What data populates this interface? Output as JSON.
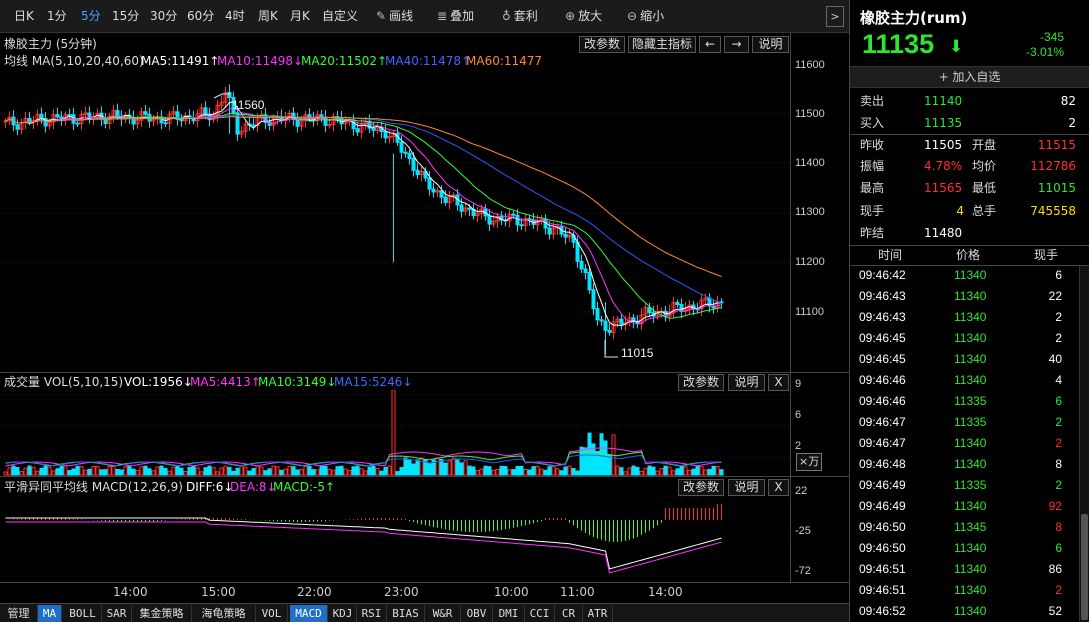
{
  "toolbar": {
    "items": [
      "日K",
      "1分",
      "5分",
      "15分",
      "30分",
      "60分",
      "4时",
      "周K",
      "月K",
      "自定义",
      "画线",
      "叠加",
      "套利",
      "放大",
      "缩小"
    ],
    "active_index": 2,
    "more": ">"
  },
  "main_panel": {
    "title": "橡胶主力 (5分钟)",
    "buttons": [
      "改参数",
      "隐藏主指标",
      "←",
      "→",
      "说明"
    ],
    "ma_label": "均线 MA(5,10,20,40,60)",
    "ma5": "MA5:11491↑",
    "ma10": "MA10:11498↓",
    "ma20": "MA20:11502↑",
    "ma40": "MA40:11478↑",
    "ma60": "MA60:11477",
    "high_label": "11560",
    "low_label": "11015",
    "yticks": [
      "11600",
      "11500",
      "11400",
      "11300",
      "11200",
      "11100"
    ]
  },
  "vol_panel": {
    "title": "成交量 VOL(5,10,15)",
    "vol": "VOL:1956↓",
    "ma5": "MA5:4413↑",
    "ma10": "MA10:3149↓",
    "ma15": "MA15:5246↓",
    "buttons": [
      "改参数",
      "说明",
      "X"
    ],
    "yticks": [
      "9",
      "6",
      "2"
    ],
    "unit": "×万"
  },
  "macd_panel": {
    "title": "平滑异同平均线 MACD(12,26,9)",
    "diff": "DIFF:6↓",
    "dea": "DEA:8↓",
    "macd": "MACD:-5↑",
    "buttons": [
      "改参数",
      "说明",
      "X"
    ],
    "yticks": [
      "22",
      "-25",
      "-72"
    ]
  },
  "time_axis": [
    "14:00",
    "15:00",
    "22:00",
    "23:00",
    "10:00",
    "11:00",
    "14:00"
  ],
  "bottom_tabs": [
    "管理",
    "MA",
    "BOLL",
    "SAR",
    "集金策略",
    "海龟策略",
    "VOL",
    "MACD",
    "KDJ",
    "RSI",
    "BIAS",
    "W&R",
    "OBV",
    "DMI",
    "CCI",
    "CR",
    "ATR"
  ],
  "bottom_active": [
    "MA",
    "MACD"
  ],
  "quote": {
    "name": "橡胶主力(rum)",
    "price": "11135",
    "arrow": "⬇",
    "change": "-345",
    "change_pct": "-3.01%",
    "add_watch": "+ 加入自选",
    "sell_label": "卖出",
    "sell_price": "11140",
    "sell_vol": "82",
    "buy_label": "买入",
    "buy_price": "11135",
    "buy_vol": "2",
    "prev_close_label": "昨收",
    "prev_close": "11505",
    "open_label": "开盘",
    "open": "11515",
    "amplitude_label": "振幅",
    "amplitude": "4.78%",
    "avg_label": "均价",
    "avg": "112786",
    "high_label": "最高",
    "high": "11565",
    "low_label": "最低",
    "low": "11015",
    "cur_hand_label": "现手",
    "cur_hand": "4",
    "total_hand_label": "总手",
    "total_hand": "745558",
    "prev_settle_label": "昨结",
    "prev_settle": "11480"
  },
  "ticks_header": [
    "时间",
    "价格",
    "现手"
  ],
  "ticks": [
    {
      "time": "09:46:42",
      "price": "11340",
      "vol": "6",
      "c": "wht"
    },
    {
      "time": "09:46:43",
      "price": "11340",
      "vol": "22",
      "c": "wht"
    },
    {
      "time": "09:46:43",
      "price": "11340",
      "vol": "2",
      "c": "wht"
    },
    {
      "time": "09:46:45",
      "price": "11340",
      "vol": "2",
      "c": "wht"
    },
    {
      "time": "09:46:45",
      "price": "11340",
      "vol": "40",
      "c": "wht"
    },
    {
      "time": "09:46:46",
      "price": "11340",
      "vol": "4",
      "c": "wht"
    },
    {
      "time": "09:46:46",
      "price": "11335",
      "vol": "6",
      "c": "grn"
    },
    {
      "time": "09:46:47",
      "price": "11335",
      "vol": "2",
      "c": "grn"
    },
    {
      "time": "09:46:47",
      "price": "11340",
      "vol": "2",
      "c": "red"
    },
    {
      "time": "09:46:48",
      "price": "11340",
      "vol": "8",
      "c": "wht"
    },
    {
      "time": "09:46:49",
      "price": "11335",
      "vol": "2",
      "c": "grn"
    },
    {
      "time": "09:46:49",
      "price": "11340",
      "vol": "92",
      "c": "red"
    },
    {
      "time": "09:46:50",
      "price": "11345",
      "vol": "8",
      "c": "red"
    },
    {
      "time": "09:46:50",
      "price": "11340",
      "vol": "6",
      "c": "grn"
    },
    {
      "time": "09:46:51",
      "price": "11340",
      "vol": "86",
      "c": "wht"
    },
    {
      "time": "09:46:51",
      "price": "11340",
      "vol": "2",
      "c": "red"
    },
    {
      "time": "09:46:52",
      "price": "11340",
      "vol": "52",
      "c": "wht"
    }
  ],
  "colors": {
    "up": "#ff3030",
    "down": "#00e5ff",
    "ma5": "#ffffff",
    "ma10": "#ff33ff",
    "ma20": "#33ff33",
    "ma40": "#3355ff",
    "ma60": "#ff8833"
  }
}
